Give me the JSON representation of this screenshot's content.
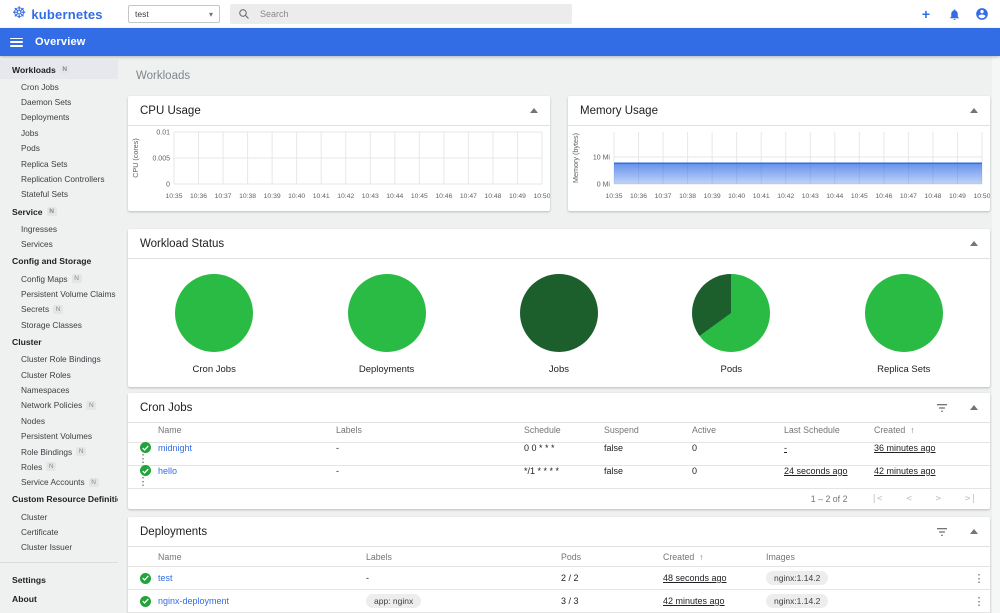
{
  "colors": {
    "accent": "#326de6",
    "status_ok": "#23a33c",
    "pie_bright": "#2abb45",
    "pie_dark": "#1c5f2c"
  },
  "icons": {
    "logo": "☸",
    "add": "+",
    "caret_down": "▾",
    "kebab": "⋮",
    "sort_asc": "↑",
    "page_first": "|<",
    "page_prev": "<",
    "page_next": ">",
    "page_last": ">|"
  },
  "header": {
    "logo_text": "kubernetes",
    "namespace_value": "test",
    "search_placeholder": "Search"
  },
  "appbar": {
    "title": "Overview"
  },
  "page": {
    "title": "Workloads"
  },
  "sidebar": {
    "items": [
      {
        "label": "Workloads",
        "header": true,
        "badge": true,
        "active": true
      },
      {
        "label": "Cron Jobs"
      },
      {
        "label": "Daemon Sets"
      },
      {
        "label": "Deployments"
      },
      {
        "label": "Jobs"
      },
      {
        "label": "Pods"
      },
      {
        "label": "Replica Sets"
      },
      {
        "label": "Replication Controllers"
      },
      {
        "label": "Stateful Sets"
      },
      {
        "label": "Service",
        "header": true,
        "badge": true
      },
      {
        "label": "Ingresses"
      },
      {
        "label": "Services"
      },
      {
        "label": "Config and Storage",
        "header": true
      },
      {
        "label": "Config Maps",
        "badge": true
      },
      {
        "label": "Persistent Volume Claims",
        "badge": true
      },
      {
        "label": "Secrets",
        "badge": true
      },
      {
        "label": "Storage Classes"
      },
      {
        "label": "Cluster",
        "header": true
      },
      {
        "label": "Cluster Role Bindings"
      },
      {
        "label": "Cluster Roles"
      },
      {
        "label": "Namespaces"
      },
      {
        "label": "Network Policies",
        "badge": true
      },
      {
        "label": "Nodes"
      },
      {
        "label": "Persistent Volumes"
      },
      {
        "label": "Role Bindings",
        "badge": true
      },
      {
        "label": "Roles",
        "badge": true
      },
      {
        "label": "Service Accounts",
        "badge": true
      },
      {
        "label": "Custom Resource Definitions",
        "header": true
      },
      {
        "label": "Cluster"
      },
      {
        "label": "Certificate"
      },
      {
        "label": "Cluster Issuer"
      },
      {
        "divider": true
      },
      {
        "label": "Settings",
        "header": true
      },
      {
        "label": "About",
        "header": true
      }
    ],
    "badge_text": "N"
  },
  "cards": {
    "cpu": {
      "title": "CPU Usage"
    },
    "memory": {
      "title": "Memory Usage"
    },
    "workload_status": {
      "title": "Workload Status"
    },
    "cron_jobs": {
      "title": "Cron Jobs",
      "columns": [
        "Name",
        "Labels",
        "Schedule",
        "Suspend",
        "Active",
        "Last Schedule",
        "Created"
      ],
      "sort_column": "Created",
      "rows": [
        {
          "name": "midnight",
          "labels": "-",
          "schedule": "0 0 * * *",
          "suspend": "false",
          "active": "0",
          "last_schedule": "-",
          "created": "36 minutes ago"
        },
        {
          "name": "hello",
          "labels": "-",
          "schedule": "*/1 * * * *",
          "suspend": "false",
          "active": "0",
          "last_schedule": "24 seconds ago",
          "created": "42 minutes ago"
        }
      ],
      "pagination": "1 – 2 of 2"
    },
    "deployments": {
      "title": "Deployments",
      "columns": [
        "Name",
        "Labels",
        "Pods",
        "Created",
        "Images"
      ],
      "sort_column": "Created",
      "rows": [
        {
          "name": "test",
          "labels": "-",
          "labels_chip": false,
          "pods": "2 / 2",
          "created": "48 seconds ago",
          "images": "nginx:1.14.2"
        },
        {
          "name": "nginx-deployment",
          "labels": "app: nginx",
          "labels_chip": true,
          "pods": "3 / 3",
          "created": "42 minutes ago",
          "images": "nginx:1.14.2"
        }
      ]
    }
  },
  "chart_data": [
    {
      "type": "area",
      "title": "CPU Usage",
      "xlabel": "",
      "ylabel": "CPU (cores)",
      "x": [
        "10:35",
        "10:36",
        "10:37",
        "10:38",
        "10:39",
        "10:40",
        "10:41",
        "10:42",
        "10:43",
        "10:44",
        "10:45",
        "10:46",
        "10:47",
        "10:48",
        "10:49",
        "10:50"
      ],
      "values": [
        0,
        0,
        0,
        0,
        0,
        0,
        0,
        0,
        0,
        0,
        0,
        0,
        0,
        0,
        0,
        0
      ],
      "yticks": [
        {
          "value": 0,
          "label": "0"
        },
        {
          "value": 0.005,
          "label": "0.005"
        },
        {
          "value": 0.01,
          "label": "0.01"
        }
      ],
      "ymax": 0.01,
      "grid": true,
      "line_color": "#326de6"
    },
    {
      "type": "area",
      "title": "Memory Usage",
      "xlabel": "",
      "ylabel": "Memory (bytes)",
      "x": [
        "10:35",
        "10:36",
        "10:37",
        "10:38",
        "10:39",
        "10:40",
        "10:41",
        "10:42",
        "10:43",
        "10:44",
        "10:45",
        "10:46",
        "10:47",
        "10:48",
        "10:49",
        "10:50"
      ],
      "values": [
        7.7,
        7.7,
        7.7,
        7.7,
        7.7,
        7.7,
        7.7,
        7.7,
        7.7,
        7.7,
        7.7,
        7.7,
        7.7,
        7.7,
        7.7,
        7.7
      ],
      "yticks": [
        {
          "value": 0,
          "label": "0 Mi"
        },
        {
          "value": 10,
          "label": "10 Mi"
        }
      ],
      "ymax": 19.3,
      "grid": true,
      "line_color": "#326de6"
    },
    {
      "type": "pie",
      "title": "Cron Jobs",
      "slices": [
        {
          "color": "#2abb45",
          "fraction": 1
        }
      ]
    },
    {
      "type": "pie",
      "title": "Deployments",
      "slices": [
        {
          "color": "#2abb45",
          "fraction": 1
        }
      ]
    },
    {
      "type": "pie",
      "title": "Jobs",
      "slices": [
        {
          "color": "#1c5f2c",
          "fraction": 1
        }
      ]
    },
    {
      "type": "pie",
      "title": "Pods",
      "slices": [
        {
          "color": "#2abb45",
          "fraction": 0.65
        },
        {
          "color": "#1c5f2c",
          "fraction": 0.35
        }
      ]
    },
    {
      "type": "pie",
      "title": "Replica Sets",
      "slices": [
        {
          "color": "#2abb45",
          "fraction": 1
        }
      ]
    }
  ]
}
